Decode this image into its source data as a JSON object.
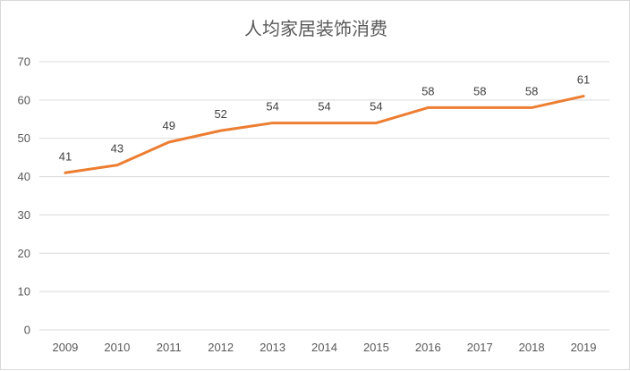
{
  "chart_data": {
    "type": "line",
    "title": "人均家居装饰消费",
    "categories": [
      "2009",
      "2010",
      "2011",
      "2012",
      "2013",
      "2014",
      "2015",
      "2016",
      "2017",
      "2018",
      "2019"
    ],
    "values": [
      41,
      43,
      49,
      52,
      54,
      54,
      54,
      58,
      58,
      58,
      61
    ],
    "ylim": [
      0,
      70
    ],
    "yticks": [
      0,
      10,
      20,
      30,
      40,
      50,
      60,
      70
    ],
    "grid": true,
    "data_labels": true,
    "line_color": "#ED7D31",
    "grid_color": "#d9d9d9",
    "legend": "none"
  }
}
